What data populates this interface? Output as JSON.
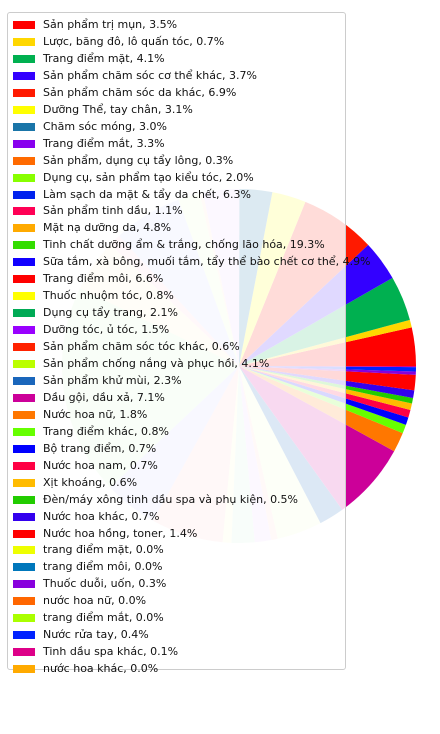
{
  "chart_data": {
    "type": "pie",
    "slices": [
      {
        "label": "Sản phẩm trị mụn, 3.5%",
        "value": 3.5,
        "color": "#ff0000"
      },
      {
        "label": "Lược, băng đô, lô quấn tóc, 0.7%",
        "value": 0.7,
        "color": "#ffd700"
      },
      {
        "label": "Trang điểm mặt, 4.1%",
        "value": 4.1,
        "color": "#00b050"
      },
      {
        "label": "Sản phẩm chăm sóc cơ thể khác, 3.7%",
        "value": 3.7,
        "color": "#3300ff"
      },
      {
        "label": "Sản phẩm chăm sóc da khác, 6.9%",
        "value": 6.9,
        "color": "#ff1a00"
      },
      {
        "label": "Dưỡng Thể, tay chân, 3.1%",
        "value": 3.1,
        "color": "#ffff00"
      },
      {
        "label": "Chăm sóc móng, 3.0%",
        "value": 3.0,
        "color": "#1a75a8"
      },
      {
        "label": "Trang điểm mắt, 3.3%",
        "value": 3.3,
        "color": "#8800ee"
      },
      {
        "label": "Sản phẩm, dụng cụ tẩy lông, 0.3%",
        "value": 0.3,
        "color": "#ff6a00"
      },
      {
        "label": "Dụng cụ, sản phẩm tạo kiểu tóc, 2.0%",
        "value": 2.0,
        "color": "#88ff00"
      },
      {
        "label": "Làm sạch da mặt & tẩy da chết, 6.3%",
        "value": 6.3,
        "color": "#0022ee"
      },
      {
        "label": "Sản phẩm tinh dầu, 1.1%",
        "value": 1.1,
        "color": "#ff0055"
      },
      {
        "label": "Mặt nạ dưỡng da, 4.8%",
        "value": 4.8,
        "color": "#ffaa00"
      },
      {
        "label": "Tinh chất dưỡng ẩm & trắng, chống lão hóa, 19.3%",
        "value": 19.3,
        "color": "#33dd00"
      },
      {
        "label": "Sữa tắm, xà bông, muối tắm, tẩy thể bào chết cơ thể, 4.9%",
        "value": 4.9,
        "color": "#1100ff"
      },
      {
        "label": "Trang điểm môi, 6.6%",
        "value": 6.6,
        "color": "#ff0000"
      },
      {
        "label": "Thuốc nhuộm tóc, 0.8%",
        "value": 0.8,
        "color": "#ffff00"
      },
      {
        "label": "Dụng cụ tẩy trang, 2.1%",
        "value": 2.1,
        "color": "#00aa55"
      },
      {
        "label": "Dưỡng tóc, ủ tóc, 1.5%",
        "value": 1.5,
        "color": "#9900ff"
      },
      {
        "label": "Sản phẩm chăm sóc tóc khác, 0.6%",
        "value": 0.6,
        "color": "#ff2200"
      },
      {
        "label": "Sản phẩm chống nắng và phục hồi, 4.1%",
        "value": 4.1,
        "color": "#bbff00"
      },
      {
        "label": "Sản phẩm khử mùi, 2.3%",
        "value": 2.3,
        "color": "#1a66bb"
      },
      {
        "label": "Dầu gội, dầu xả, 7.1%",
        "value": 7.1,
        "color": "#cc0099"
      },
      {
        "label": "Nước hoa nữ, 1.8%",
        "value": 1.8,
        "color": "#ff7700"
      },
      {
        "label": "Trang điểm khác, 0.8%",
        "value": 0.8,
        "color": "#66ff00"
      },
      {
        "label": "Bộ trang điểm, 0.7%",
        "value": 0.7,
        "color": "#0000ff"
      },
      {
        "label": "Nước hoa nam, 0.7%",
        "value": 0.7,
        "color": "#ff0044"
      },
      {
        "label": "Xịt khoáng, 0.6%",
        "value": 0.6,
        "color": "#ffbb00"
      },
      {
        "label": "Đèn/máy xông tinh dầu spa và phụ kiện, 0.5%",
        "value": 0.5,
        "color": "#22cc00"
      },
      {
        "label": "Nước hoa khác, 0.7%",
        "value": 0.7,
        "color": "#3300ee"
      },
      {
        "label": "Nước hoa hồng, toner, 1.4%",
        "value": 1.4,
        "color": "#ff0000"
      },
      {
        "label": "trang điểm mặt, 0.0%",
        "value": 0.0,
        "color": "#eeff00"
      },
      {
        "label": "trang điểm môi, 0.0%",
        "value": 0.0,
        "color": "#0077bb"
      },
      {
        "label": "Thuốc duỗi, uốn, 0.3%",
        "value": 0.3,
        "color": "#8800dd"
      },
      {
        "label": "nước hoa nữ, 0.0%",
        "value": 0.0,
        "color": "#ff6600"
      },
      {
        "label": "trang điểm mắt, 0.0%",
        "value": 0.0,
        "color": "#aaff00"
      },
      {
        "label": "Nước rửa tay, 0.4%",
        "value": 0.4,
        "color": "#0022ff"
      },
      {
        "label": "Tinh dầu spa khác, 0.1%",
        "value": 0.1,
        "color": "#dd0088"
      },
      {
        "label": "nước hoa khác, 0.0%",
        "value": 0.0,
        "color": "#ffaa00"
      }
    ]
  }
}
